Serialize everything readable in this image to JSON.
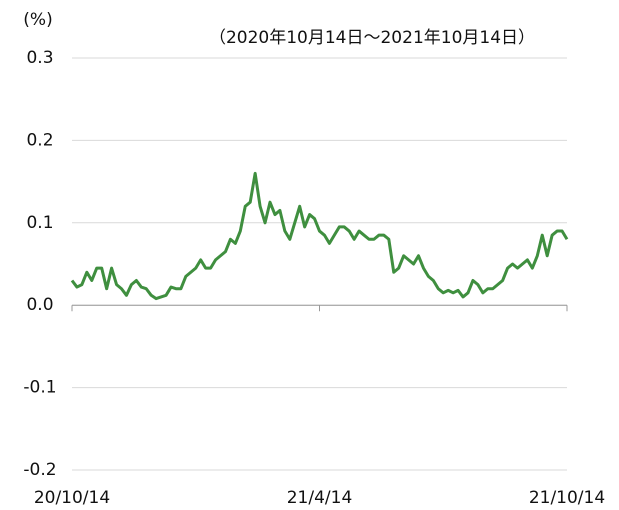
{
  "chart_data": {
    "type": "line",
    "y_label": "(%)",
    "subtitle": "（2020年10月14日～2021年10月14日）",
    "categories": [
      "20/10/14",
      null,
      null,
      null,
      null,
      null,
      null,
      null,
      null,
      null,
      null,
      null,
      null,
      null,
      null,
      null,
      null,
      null,
      null,
      null,
      null,
      null,
      null,
      null,
      null,
      null,
      null,
      null,
      null,
      null,
      null,
      null,
      null,
      null,
      null,
      null,
      null,
      null,
      null,
      null,
      null,
      null,
      null,
      null,
      null,
      null,
      null,
      null,
      null,
      null,
      "21/4/14",
      null,
      null,
      null,
      null,
      null,
      null,
      null,
      null,
      null,
      null,
      null,
      null,
      null,
      null,
      null,
      null,
      null,
      null,
      null,
      null,
      null,
      null,
      null,
      null,
      null,
      null,
      null,
      null,
      null,
      null,
      null,
      null,
      null,
      null,
      null,
      null,
      null,
      null,
      null,
      null,
      null,
      null,
      null,
      null,
      null,
      null,
      null,
      null,
      null,
      "21/10/14"
    ],
    "series": [
      {
        "color": "#3f8f3f",
        "values": [
          0.03,
          0.022,
          0.025,
          0.04,
          0.03,
          0.045,
          0.045,
          0.02,
          0.045,
          0.025,
          0.02,
          0.012,
          0.025,
          0.03,
          0.022,
          0.02,
          0.012,
          0.008,
          0.01,
          0.012,
          0.022,
          0.02,
          0.02,
          0.035,
          0.04,
          0.045,
          0.055,
          0.045,
          0.045,
          0.055,
          0.06,
          0.065,
          0.08,
          0.075,
          0.09,
          0.12,
          0.125,
          0.16,
          0.12,
          0.1,
          0.125,
          0.11,
          0.115,
          0.09,
          0.08,
          0.1,
          0.12,
          0.095,
          0.11,
          0.105,
          0.09,
          0.085,
          0.075,
          0.085,
          0.095,
          0.095,
          0.09,
          0.08,
          0.09,
          0.085,
          0.08,
          0.08,
          0.085,
          0.085,
          0.08,
          0.04,
          0.045,
          0.06,
          0.055,
          0.05,
          0.06,
          0.045,
          0.035,
          0.03,
          0.02,
          0.015,
          0.018,
          0.015,
          0.018,
          0.01,
          0.015,
          0.03,
          0.025,
          0.015,
          0.02,
          0.02,
          0.025,
          0.03,
          0.045,
          0.05,
          0.045,
          0.05,
          0.055,
          0.045,
          0.06,
          0.085,
          0.06,
          0.085,
          0.09,
          0.09,
          0.08
        ]
      }
    ],
    "ylim": [
      -0.2,
      0.3
    ],
    "yticks": [
      0.3,
      0.2,
      0.1,
      {
        "value": 0,
        "label": "0.0"
      },
      -0.1,
      -0.2
    ],
    "grid": true
  }
}
